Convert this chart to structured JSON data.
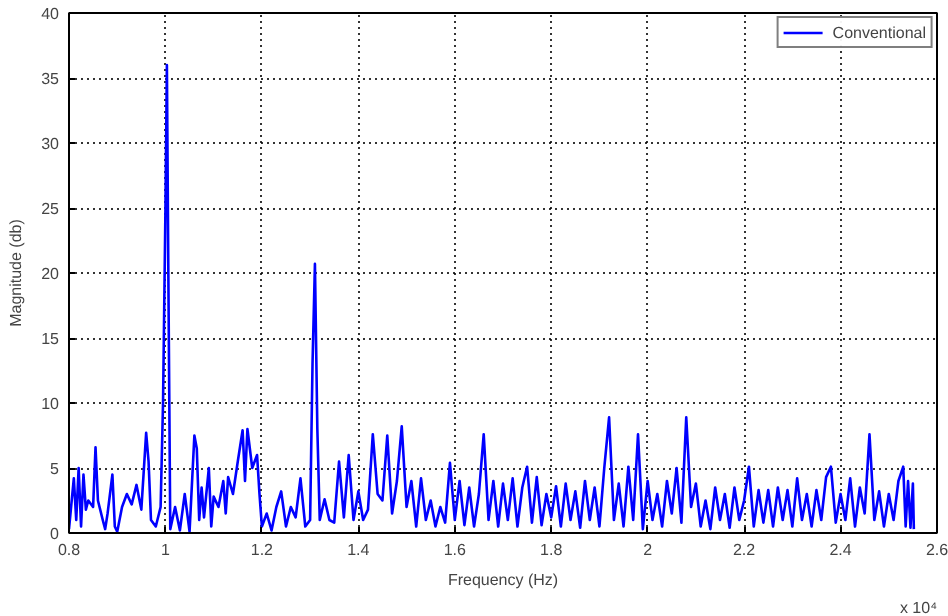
{
  "chart_data": {
    "type": "line",
    "xlabel": "Frequency (Hz)",
    "ylabel": "Magnitude (db)",
    "annotations": [
      "x 10⁴"
    ],
    "xlim": [
      0.8,
      2.6
    ],
    "ylim": [
      0,
      40
    ],
    "xticks": [
      0.8,
      1,
      1.2,
      1.4,
      1.6,
      1.8,
      2,
      2.2,
      2.4,
      2.6
    ],
    "yticks": [
      0,
      5,
      10,
      15,
      20,
      25,
      30,
      35,
      40
    ],
    "grid": true,
    "legend": "top right",
    "line_style": "solid",
    "series": [
      {
        "name": "Conventional",
        "color": "#0000ff",
        "x": [
          0.8,
          0.81,
          0.815,
          0.82,
          0.825,
          0.83,
          0.835,
          0.84,
          0.85,
          0.855,
          0.86,
          0.87,
          0.875,
          0.88,
          0.89,
          0.895,
          0.9,
          0.91,
          0.92,
          0.93,
          0.94,
          0.95,
          0.96,
          0.965,
          0.97,
          0.98,
          0.99,
          0.995,
          1.0,
          1.003,
          1.006,
          1.01,
          1.02,
          1.03,
          1.04,
          1.05,
          1.06,
          1.065,
          1.07,
          1.075,
          1.08,
          1.09,
          1.095,
          1.1,
          1.11,
          1.12,
          1.125,
          1.13,
          1.14,
          1.15,
          1.16,
          1.165,
          1.17,
          1.18,
          1.19,
          1.195,
          1.2,
          1.21,
          1.22,
          1.23,
          1.24,
          1.25,
          1.26,
          1.27,
          1.28,
          1.29,
          1.3,
          1.305,
          1.31,
          1.315,
          1.32,
          1.33,
          1.34,
          1.35,
          1.36,
          1.37,
          1.38,
          1.39,
          1.4,
          1.41,
          1.42,
          1.43,
          1.44,
          1.45,
          1.46,
          1.47,
          1.48,
          1.49,
          1.5,
          1.51,
          1.52,
          1.53,
          1.54,
          1.55,
          1.56,
          1.57,
          1.58,
          1.59,
          1.6,
          1.61,
          1.62,
          1.63,
          1.64,
          1.65,
          1.66,
          1.67,
          1.68,
          1.69,
          1.7,
          1.71,
          1.72,
          1.73,
          1.74,
          1.75,
          1.76,
          1.77,
          1.78,
          1.79,
          1.8,
          1.81,
          1.82,
          1.83,
          1.84,
          1.85,
          1.86,
          1.87,
          1.88,
          1.89,
          1.9,
          1.91,
          1.92,
          1.93,
          1.94,
          1.95,
          1.96,
          1.97,
          1.98,
          1.99,
          2.0,
          2.01,
          2.02,
          2.03,
          2.04,
          2.05,
          2.06,
          2.07,
          2.08,
          2.09,
          2.1,
          2.11,
          2.12,
          2.13,
          2.14,
          2.15,
          2.16,
          2.17,
          2.18,
          2.19,
          2.2,
          2.21,
          2.22,
          2.23,
          2.24,
          2.25,
          2.26,
          2.27,
          2.28,
          2.29,
          2.3,
          2.31,
          2.32,
          2.33,
          2.34,
          2.35,
          2.36,
          2.37,
          2.38,
          2.39,
          2.4,
          2.41,
          2.42,
          2.43,
          2.44,
          2.45,
          2.46,
          2.47,
          2.48,
          2.49,
          2.5,
          2.51,
          2.52,
          2.53,
          2.535,
          2.54,
          2.545,
          2.55,
          2.552
        ],
        "values": [
          0.3,
          4.2,
          1,
          5,
          0.5,
          4.5,
          1.8,
          2.5,
          2,
          6.6,
          2.5,
          1,
          0.3,
          1.5,
          4.5,
          0.5,
          0.1,
          2,
          3,
          2.2,
          3.7,
          1.8,
          7.7,
          5.5,
          1,
          0.5,
          2,
          10,
          25,
          36,
          20,
          0.3,
          2,
          0.2,
          3,
          0.1,
          7.5,
          6.5,
          1,
          3.5,
          1.2,
          5,
          0.5,
          2.8,
          2,
          4,
          1.5,
          4.3,
          3,
          5.5,
          7.9,
          4,
          8,
          5,
          6,
          3,
          0.5,
          1.5,
          0.2,
          2,
          3.2,
          0.5,
          2,
          1.2,
          4.2,
          0.5,
          1,
          13,
          20.7,
          8,
          1,
          2.6,
          1,
          0.8,
          5.5,
          1.2,
          6,
          1,
          3.2,
          1,
          1.8,
          7.6,
          3,
          2.5,
          7.5,
          1.5,
          4,
          8.2,
          2,
          4,
          0.5,
          4.2,
          1,
          2.5,
          0.5,
          2,
          0.8,
          5.4,
          1,
          4,
          0.6,
          3.5,
          0.5,
          3,
          7.6,
          1,
          4,
          0.5,
          3.8,
          1,
          4.2,
          0.5,
          3.5,
          5.1,
          0.8,
          4.3,
          0.6,
          3,
          1.2,
          3.6,
          0.5,
          3.8,
          1,
          3.2,
          0.4,
          4,
          1,
          3.5,
          0.5,
          5,
          8.9,
          1,
          3.8,
          0.5,
          5.1,
          1,
          7.6,
          0.3,
          4,
          1,
          3,
          0.5,
          4,
          1.5,
          5,
          0.8,
          8.9,
          2,
          3.8,
          0.5,
          2.5,
          0.3,
          3.5,
          1,
          3,
          0.4,
          3.5,
          1,
          2.5,
          5.1,
          0.5,
          3.3,
          0.8,
          3.3,
          0.5,
          3.5,
          1,
          3.3,
          0.5,
          4.2,
          1,
          3,
          0.5,
          3.3,
          1,
          4.3,
          5.1,
          0.8,
          3,
          1,
          4.2,
          0.5,
          3.5,
          1.5,
          7.6,
          1,
          3.2,
          0.5,
          3,
          1,
          4,
          5.1,
          0.5,
          4,
          0.4,
          3.8,
          0.3
        ]
      }
    ]
  }
}
